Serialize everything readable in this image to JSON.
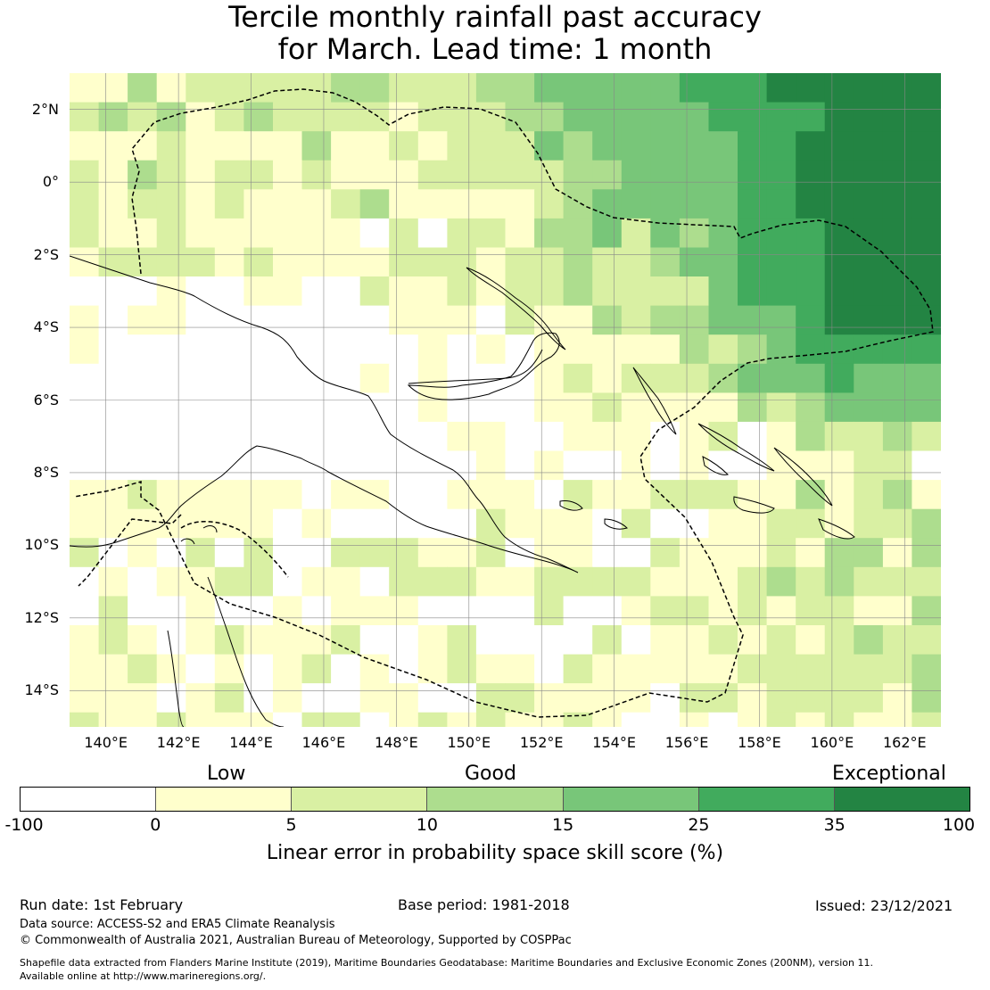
{
  "title": {
    "line1": "Tercile monthly rainfall past accuracy",
    "line2": "for March. Lead time: 1 month"
  },
  "map": {
    "lat_labels": [
      "2°N",
      "0°",
      "2°S",
      "4°S",
      "6°S",
      "8°S",
      "10°S",
      "12°S",
      "14°S"
    ],
    "lon_labels": [
      "140°E",
      "142°E",
      "144°E",
      "146°E",
      "148°E",
      "150°E",
      "152°E",
      "154°E",
      "156°E",
      "158°E",
      "160°E",
      "162°E"
    ],
    "lon_range_deg": [
      139.0,
      163.0
    ],
    "lat_range_deg": [
      -15.0,
      3.0
    ],
    "grid_resolution_deg": 0.8,
    "gridline_color": "#888888",
    "boundary_style": "dashed",
    "coast_color": "#000000"
  },
  "legend": {
    "categories": [
      "Low",
      "Good",
      "Exceptional"
    ],
    "tick_labels": [
      "-100",
      "0",
      "5",
      "10",
      "15",
      "25",
      "35",
      "100"
    ],
    "colors": [
      "#ffffff",
      "#ffffcc",
      "#d9f0a3",
      "#addd8e",
      "#78c679",
      "#41ab5d",
      "#238443"
    ],
    "title": "Linear error in probability space skill score (%)"
  },
  "footer": {
    "run_date": "Run date: 1st February",
    "base_period": "Base period: 1981-2018",
    "issued": "Issued: 23/12/2021",
    "data_source": "Data source: ACCESS-S2 and ERA5 Climate Reanalysis",
    "copyright": "© Commonwealth of Australia 2021, Australian Bureau of Meteorology, Supported by COSPPac",
    "shapefile_line1": "Shapefile data extracted from Flanders Marine Institute (2019), Maritime Boundaries Geodatabase: Maritime Boundaries and Exclusive Economic Zones (200NM), version 11.",
    "shapefile_line2": "Available online at http://www.marineregions.org/."
  }
}
